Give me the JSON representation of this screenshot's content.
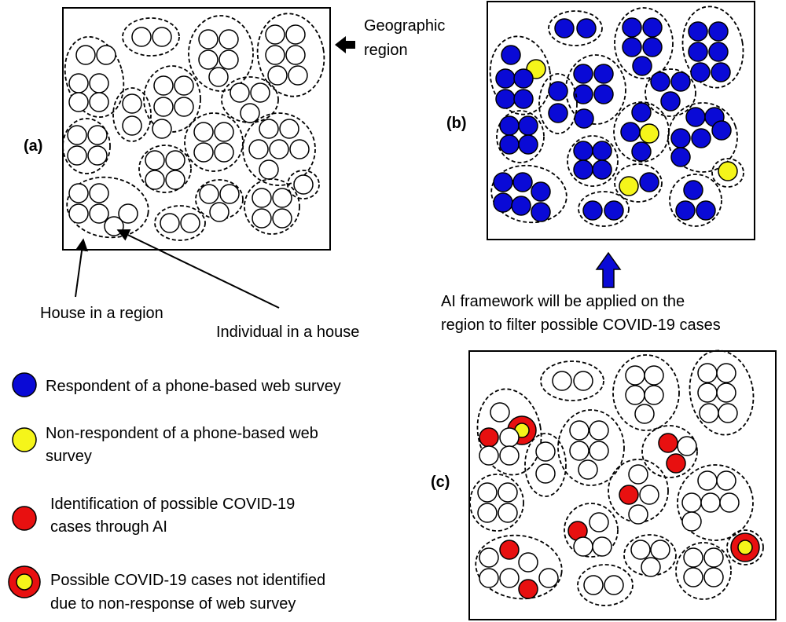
{
  "panels": {
    "a": {
      "label": "(a)"
    },
    "b": {
      "label": "(b)"
    },
    "c": {
      "label": "(c)"
    }
  },
  "annotations": {
    "geographic_region": [
      "Geographic",
      "region"
    ],
    "house_in_region": "House in a region",
    "individual_in_house": "Individual in a house",
    "ai_framework": [
      "AI framework will be applied on the",
      "region to filter possible COVID-19 cases"
    ]
  },
  "legend": [
    {
      "kind": "respondent",
      "lines": [
        "Respondent of a phone-based web survey"
      ]
    },
    {
      "kind": "non_respondent",
      "lines": [
        "Non-respondent of a phone-based web",
        "survey"
      ]
    },
    {
      "kind": "identified",
      "lines": [
        "Identification of possible COVID-19",
        "cases through AI"
      ]
    },
    {
      "kind": "missed",
      "lines": [
        "Possible COVID-19 cases not identified",
        "due to non-response of web survey"
      ]
    }
  ],
  "colors": {
    "respondent": "#0a0ad6",
    "non_respondent": "#f5f51a",
    "identified": "#e81010",
    "outline": "#000000",
    "empty": "#ffffff"
  }
}
